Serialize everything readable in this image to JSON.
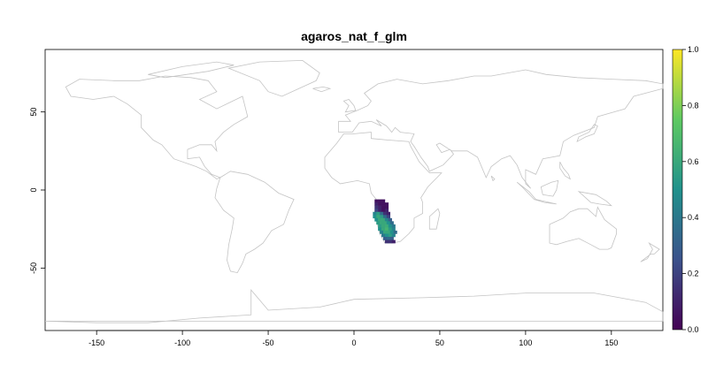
{
  "title": "agaros_nat_f_glm",
  "x_axis": {
    "ticks": [
      "-150",
      "-100",
      "-50",
      "0",
      "50",
      "100",
      "150"
    ],
    "range": [
      -180,
      180
    ]
  },
  "y_axis": {
    "ticks": [
      "-50",
      "0",
      "50"
    ],
    "range": [
      -90,
      90
    ]
  },
  "legend": {
    "ticks": [
      "0.0",
      "0.2",
      "0.4",
      "0.6",
      "0.8",
      "1.0"
    ],
    "range": [
      0,
      1
    ],
    "colors": [
      "#440154",
      "#3b528b",
      "#21918c",
      "#5ec962",
      "#fde725"
    ]
  },
  "raster": {
    "region": "southern Africa",
    "cells": [
      {
        "lon": 13,
        "lat": -7,
        "value": 0.05
      },
      {
        "lon": 15,
        "lat": -7,
        "value": 0.05
      },
      {
        "lon": 17,
        "lat": -7,
        "value": 0.05
      },
      {
        "lon": 13,
        "lat": -9,
        "value": 0.1
      },
      {
        "lon": 15,
        "lat": -9,
        "value": 0.05
      },
      {
        "lon": 17,
        "lat": -9,
        "value": 0.05
      },
      {
        "lon": 19,
        "lat": -9,
        "value": 0.05
      },
      {
        "lon": 13,
        "lat": -11,
        "value": 0.15
      },
      {
        "lon": 15,
        "lat": -11,
        "value": 0.1
      },
      {
        "lon": 17,
        "lat": -11,
        "value": 0.05
      },
      {
        "lon": 19,
        "lat": -11,
        "value": 0.05
      },
      {
        "lon": 13,
        "lat": -13,
        "value": 0.2
      },
      {
        "lon": 15,
        "lat": -13,
        "value": 0.1
      },
      {
        "lon": 17,
        "lat": -13,
        "value": 0.05
      },
      {
        "lon": 19,
        "lat": -13,
        "value": 0.1
      },
      {
        "lon": 12,
        "lat": -15,
        "value": 0.45
      },
      {
        "lon": 14,
        "lat": -15,
        "value": 0.55
      },
      {
        "lon": 16,
        "lat": -15,
        "value": 0.35
      },
      {
        "lon": 18,
        "lat": -15,
        "value": 0.15
      },
      {
        "lon": 20,
        "lat": -15,
        "value": 0.1
      },
      {
        "lon": 12,
        "lat": -17,
        "value": 0.5
      },
      {
        "lon": 14,
        "lat": -17,
        "value": 0.6
      },
      {
        "lon": 16,
        "lat": -17,
        "value": 0.55
      },
      {
        "lon": 18,
        "lat": -17,
        "value": 0.35
      },
      {
        "lon": 20,
        "lat": -17,
        "value": 0.2
      },
      {
        "lon": 13,
        "lat": -19,
        "value": 0.5
      },
      {
        "lon": 15,
        "lat": -19,
        "value": 0.6
      },
      {
        "lon": 17,
        "lat": -19,
        "value": 0.6
      },
      {
        "lon": 19,
        "lat": -19,
        "value": 0.45
      },
      {
        "lon": 21,
        "lat": -19,
        "value": 0.3
      },
      {
        "lon": 14,
        "lat": -21,
        "value": 0.55
      },
      {
        "lon": 16,
        "lat": -21,
        "value": 0.6
      },
      {
        "lon": 18,
        "lat": -21,
        "value": 0.6
      },
      {
        "lon": 20,
        "lat": -21,
        "value": 0.5
      },
      {
        "lon": 22,
        "lat": -21,
        "value": 0.35
      },
      {
        "lon": 15,
        "lat": -23,
        "value": 0.55
      },
      {
        "lon": 17,
        "lat": -23,
        "value": 0.6
      },
      {
        "lon": 19,
        "lat": -23,
        "value": 0.62
      },
      {
        "lon": 21,
        "lat": -23,
        "value": 0.5
      },
      {
        "lon": 23,
        "lat": -23,
        "value": 0.4
      },
      {
        "lon": 15,
        "lat": -25,
        "value": 0.5
      },
      {
        "lon": 17,
        "lat": -25,
        "value": 0.6
      },
      {
        "lon": 19,
        "lat": -25,
        "value": 0.65
      },
      {
        "lon": 21,
        "lat": -25,
        "value": 0.55
      },
      {
        "lon": 23,
        "lat": -25,
        "value": 0.45
      },
      {
        "lon": 16,
        "lat": -27,
        "value": 0.45
      },
      {
        "lon": 18,
        "lat": -27,
        "value": 0.6
      },
      {
        "lon": 20,
        "lat": -27,
        "value": 0.6
      },
      {
        "lon": 22,
        "lat": -27,
        "value": 0.5
      },
      {
        "lon": 24,
        "lat": -27,
        "value": 0.35
      },
      {
        "lon": 17,
        "lat": -29,
        "value": 0.4
      },
      {
        "lon": 19,
        "lat": -29,
        "value": 0.5
      },
      {
        "lon": 21,
        "lat": -29,
        "value": 0.55
      },
      {
        "lon": 23,
        "lat": -29,
        "value": 0.45
      },
      {
        "lon": 18,
        "lat": -31,
        "value": 0.3
      },
      {
        "lon": 20,
        "lat": -31,
        "value": 0.35
      },
      {
        "lon": 22,
        "lat": -31,
        "value": 0.3
      },
      {
        "lon": 19,
        "lat": -33,
        "value": 0.15
      },
      {
        "lon": 21,
        "lat": -33,
        "value": 0.15
      },
      {
        "lon": 23,
        "lat": -33,
        "value": 0.1
      }
    ]
  }
}
